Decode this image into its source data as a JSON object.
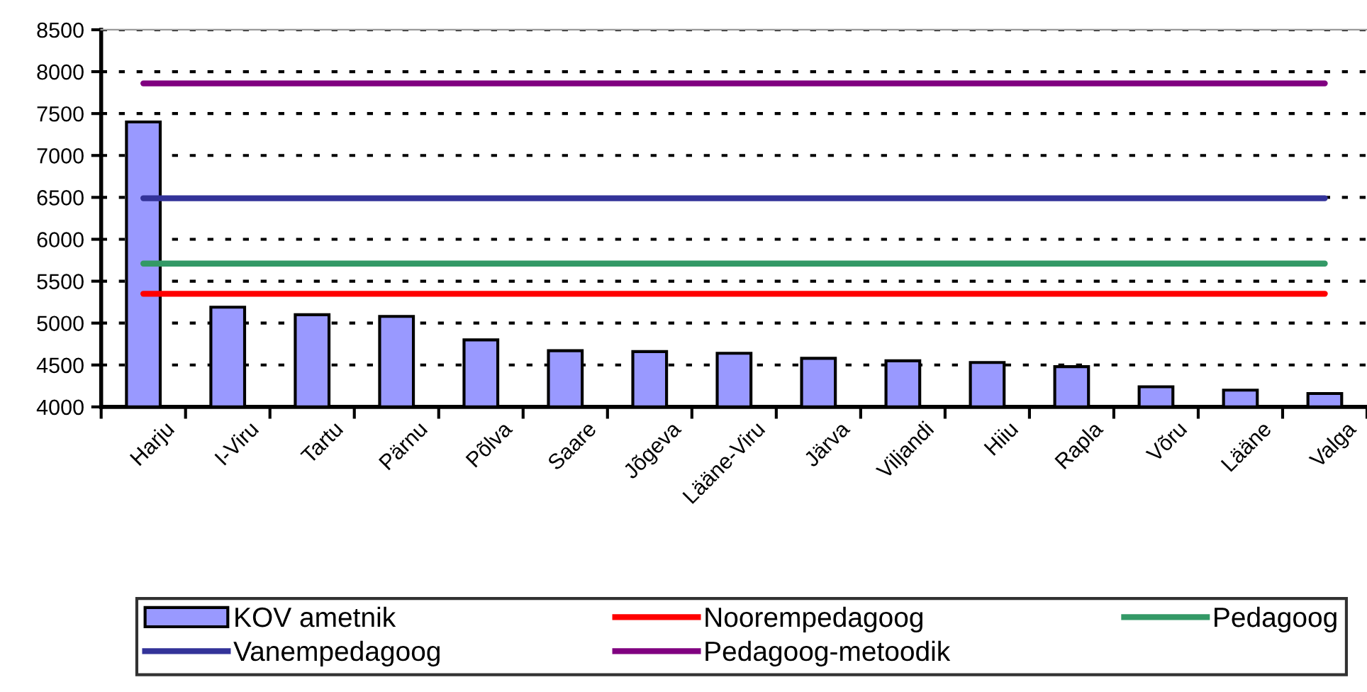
{
  "chart_data": {
    "type": "bar",
    "categories": [
      "Harju",
      "I-Viru",
      "Tartu",
      "Pärnu",
      "Põlva",
      "Saare",
      "Jõgeva",
      "Lääne-Viru",
      "Järva",
      "Viljandi",
      "Hiiu",
      "Rapla",
      "Võru",
      "Lääne",
      "Valga"
    ],
    "series": [
      {
        "name": "KOV ametnik",
        "color": "#9999ff",
        "values": [
          7400,
          5190,
          5100,
          5080,
          4800,
          4670,
          4660,
          4640,
          4580,
          4550,
          4530,
          4480,
          4240,
          4200,
          4160
        ]
      },
      {
        "name": "Noorempedagoog",
        "type": "line",
        "color": "#ff0000",
        "values": [
          5350,
          5350,
          5350,
          5350,
          5350,
          5350,
          5350,
          5350,
          5350,
          5350,
          5350,
          5350,
          5350,
          5350,
          5350
        ]
      },
      {
        "name": "Pedagoog",
        "type": "line",
        "color": "#339966",
        "values": [
          5710,
          5710,
          5710,
          5710,
          5710,
          5710,
          5710,
          5710,
          5710,
          5710,
          5710,
          5710,
          5710,
          5710,
          5710
        ]
      },
      {
        "name": "Vanempedagoog",
        "type": "line",
        "color": "#333399",
        "values": [
          6490,
          6490,
          6490,
          6490,
          6490,
          6490,
          6490,
          6490,
          6490,
          6490,
          6490,
          6490,
          6490,
          6490,
          6490
        ]
      },
      {
        "name": "Pedagoog-metoodik",
        "type": "line",
        "color": "#800080",
        "values": [
          7860,
          7860,
          7860,
          7860,
          7860,
          7860,
          7860,
          7860,
          7860,
          7860,
          7860,
          7860,
          7860,
          7860,
          7860
        ]
      }
    ],
    "ylim": [
      4000,
      8500
    ],
    "yticks": [
      4000,
      4500,
      5000,
      5500,
      6000,
      6500,
      7000,
      7500,
      8000,
      8500
    ],
    "grid": "y",
    "legend": "bottom",
    "marker": "none",
    "line_style": "solid"
  }
}
